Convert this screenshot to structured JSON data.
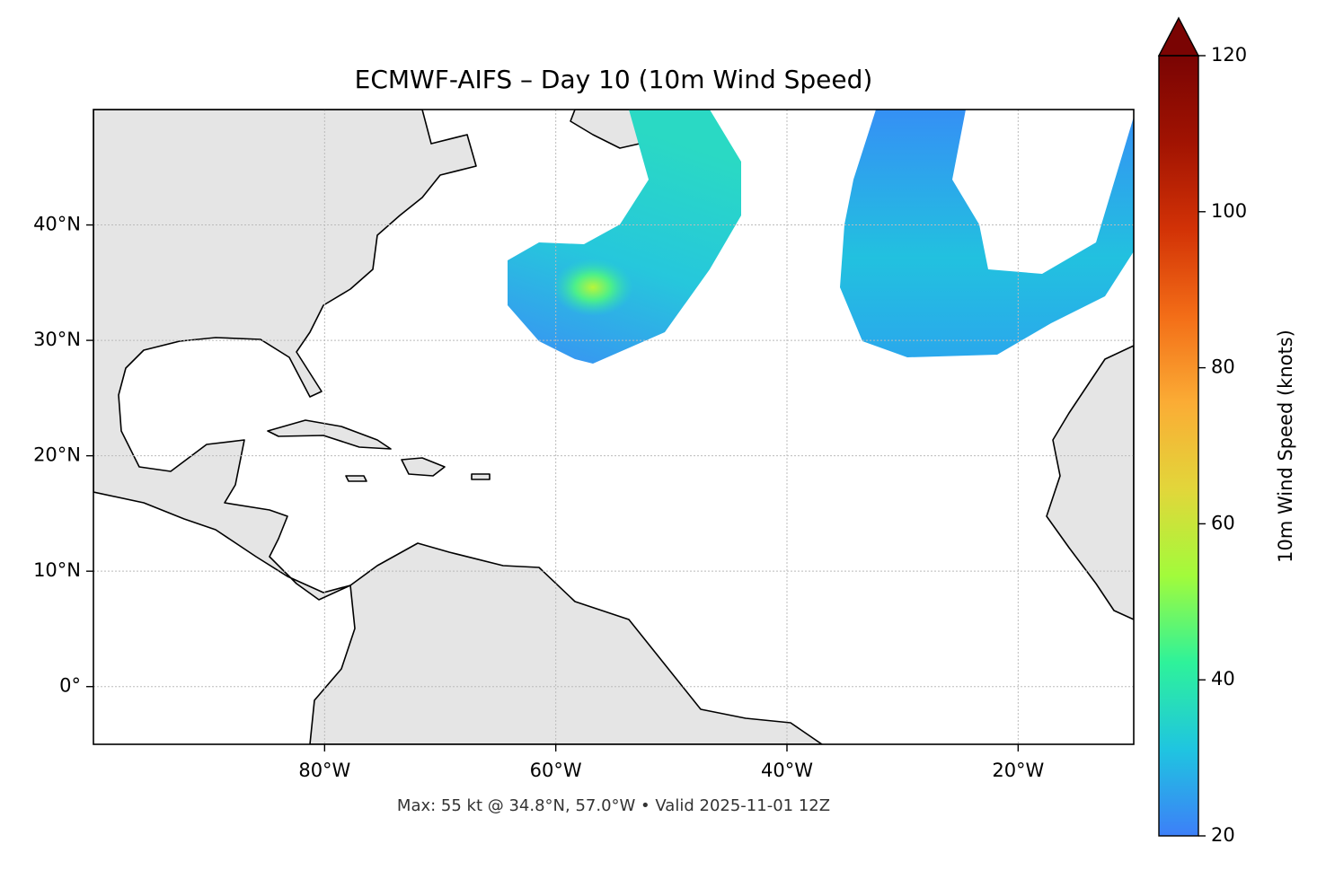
{
  "title": "ECMWF-AIFS – Day 10 (10m Wind Speed)",
  "map": {
    "lon_lim": [
      -100,
      -10
    ],
    "lat_lim": [
      -5,
      50
    ],
    "xticks": [
      {
        "value": -80,
        "label": "80°W"
      },
      {
        "value": -60,
        "label": "60°W"
      },
      {
        "value": -40,
        "label": "40°W"
      },
      {
        "value": -20,
        "label": "20°W"
      }
    ],
    "yticks": [
      {
        "value": 0,
        "label": "0°"
      },
      {
        "value": 10,
        "label": "10°N"
      },
      {
        "value": 20,
        "label": "20°N"
      },
      {
        "value": 30,
        "label": "30°N"
      },
      {
        "value": 40,
        "label": "40°N"
      }
    ],
    "grid": true
  },
  "colorbar": {
    "label": "10m Wind Speed (knots)",
    "lim": [
      20,
      120
    ],
    "ticks": [
      20,
      40,
      60,
      80,
      100,
      120
    ],
    "extend": "max",
    "colors": [
      "#3d7ff8",
      "#1fc5e0",
      "#2ef29a",
      "#a2fb3b",
      "#e2d63a",
      "#fbac35",
      "#f36d17",
      "#d23206",
      "#a11302",
      "#7a0403"
    ]
  },
  "footer": "Max: 55 kt @ 34.8°N, 57.0°W • Valid 2025-11-01 12Z"
}
